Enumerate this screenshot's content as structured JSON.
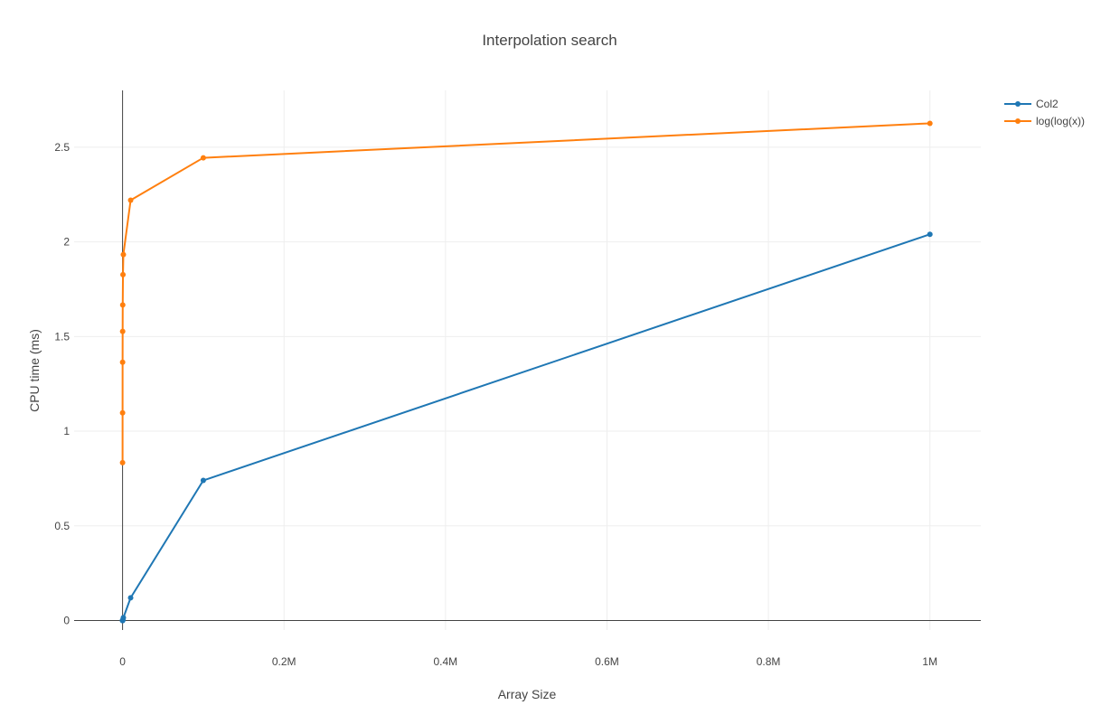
{
  "chart_data": {
    "type": "line",
    "title": "Interpolation search",
    "xlabel": "Array Size",
    "ylabel": "CPU time (ms)",
    "xlim": [
      -60000,
      1063000
    ],
    "ylim": [
      -0.05,
      2.8
    ],
    "xticks": [
      {
        "value": 0,
        "label": "0"
      },
      {
        "value": 200000,
        "label": "0.2M"
      },
      {
        "value": 400000,
        "label": "0.4M"
      },
      {
        "value": 600000,
        "label": "0.6M"
      },
      {
        "value": 800000,
        "label": "0.8M"
      },
      {
        "value": 1000000,
        "label": "1M"
      }
    ],
    "yticks": [
      {
        "value": 0,
        "label": "0"
      },
      {
        "value": 0.5,
        "label": "0.5"
      },
      {
        "value": 1,
        "label": "1"
      },
      {
        "value": 1.5,
        "label": "1.5"
      },
      {
        "value": 2,
        "label": "2"
      },
      {
        "value": 2.5,
        "label": "2.5"
      }
    ],
    "grid": true,
    "legend_position": "top-right",
    "series": [
      {
        "name": "Col2",
        "color": "#1f77b4",
        "x": [
          10,
          20,
          50,
          100,
          200,
          500,
          1000,
          10000,
          100000,
          1000000
        ],
        "y": [
          0.0,
          0.0,
          0.0,
          0.0,
          0.002,
          0.004,
          0.015,
          0.12,
          0.74,
          2.04
        ]
      },
      {
        "name": "log(log(x))",
        "color": "#ff7f0e",
        "x": [
          10,
          20,
          50,
          100,
          200,
          500,
          1000,
          10000,
          100000,
          1000000
        ],
        "y": [
          0.834,
          1.097,
          1.364,
          1.527,
          1.667,
          1.827,
          1.933,
          2.22,
          2.444,
          2.626
        ]
      }
    ]
  }
}
